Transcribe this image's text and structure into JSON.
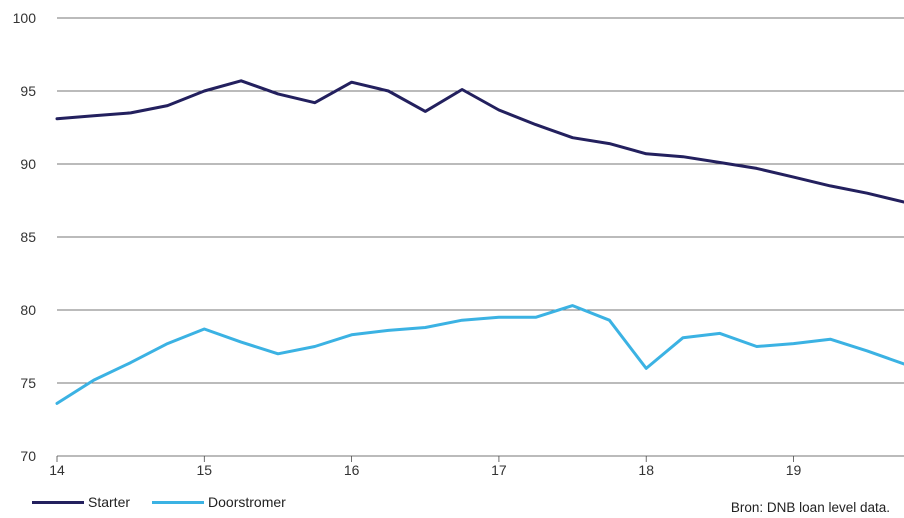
{
  "chart_data": {
    "type": "line",
    "x": [
      14,
      14.25,
      14.5,
      14.75,
      15,
      15.25,
      15.5,
      15.75,
      16,
      16.25,
      16.5,
      16.75,
      17,
      17.25,
      17.5,
      17.75,
      18,
      18.25,
      18.5,
      18.75,
      19,
      19.25,
      19.5,
      19.75
    ],
    "series": [
      {
        "name": "Starter",
        "color": "#23205e",
        "values": [
          93.1,
          93.3,
          93.5,
          94.0,
          95.0,
          95.7,
          94.8,
          94.2,
          95.6,
          95.0,
          93.6,
          95.1,
          93.7,
          92.7,
          91.8,
          91.4,
          90.7,
          90.5,
          90.1,
          89.7,
          89.1,
          88.5,
          88.0,
          87.4
        ]
      },
      {
        "name": "Doorstromer",
        "color": "#3bb2e3",
        "values": [
          73.6,
          75.2,
          76.4,
          77.7,
          78.7,
          77.8,
          77.0,
          77.5,
          78.3,
          78.6,
          78.8,
          79.3,
          79.5,
          79.5,
          80.3,
          79.3,
          76.0,
          78.1,
          78.4,
          77.5,
          77.7,
          78.0,
          77.2,
          76.3
        ]
      }
    ],
    "xticks": [
      "14",
      "15",
      "16",
      "17",
      "18",
      "19"
    ],
    "yticks": [
      "70",
      "75",
      "80",
      "85",
      "90",
      "95",
      "100"
    ],
    "xlim": [
      14,
      19.75
    ],
    "ylim": [
      70,
      100
    ],
    "grid": "horizontal",
    "legend": "bottom-left",
    "source": "Bron: DNB loan level data."
  }
}
